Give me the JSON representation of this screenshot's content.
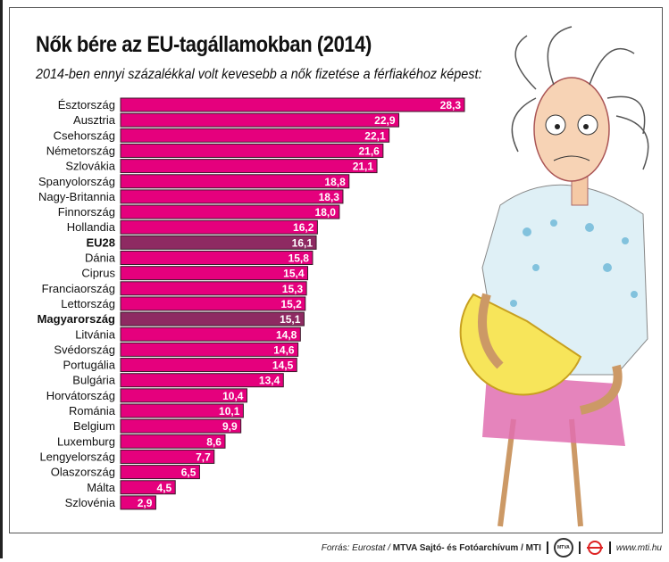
{
  "title": "Nők bére az EU-tagállamokban (2014)",
  "subtitle": "2014-ben ennyi százalékkal volt kevesebb a nők fizetése a férfiakéhoz képest:",
  "colors": {
    "bar": "#e5007d",
    "highlight": "#8e2a62",
    "label": "#ffffff"
  },
  "chart_data": {
    "type": "bar",
    "orientation": "horizontal",
    "categories": [
      "Észtország",
      "Ausztria",
      "Csehország",
      "Németország",
      "Szlovákia",
      "Spanyolország",
      "Nagy-Britannia",
      "Finnország",
      "Hollandia",
      "EU28",
      "Dánia",
      "Ciprus",
      "Franciaország",
      "Lettország",
      "Magyarország",
      "Litvánia",
      "Svédország",
      "Portugália",
      "Bulgária",
      "Horvátország",
      "Románia",
      "Belgium",
      "Luxemburg",
      "Lengyelország",
      "Olaszország",
      "Málta",
      "Szlovénia"
    ],
    "values": [
      28.3,
      22.9,
      22.1,
      21.6,
      21.1,
      18.8,
      18.3,
      18.0,
      16.2,
      16.1,
      15.8,
      15.4,
      15.3,
      15.2,
      15.1,
      14.8,
      14.6,
      14.5,
      13.4,
      10.4,
      10.1,
      9.9,
      8.6,
      7.7,
      6.5,
      4.5,
      2.9
    ],
    "labels": [
      "28,3",
      "22,9",
      "22,1",
      "21,6",
      "21,1",
      "18,8",
      "18,3",
      "18,0",
      "16,2",
      "16,1",
      "15,8",
      "15,4",
      "15,3",
      "15,2",
      "15,1",
      "14,8",
      "14,6",
      "14,5",
      "13,4",
      "10,4",
      "10,1",
      "9,9",
      "8,6",
      "7,7",
      "6,5",
      "4,5",
      "2,9"
    ],
    "highlighted": [
      "EU28",
      "Magyarország"
    ],
    "xlim": [
      0,
      28.3
    ],
    "grid": false
  },
  "footer": {
    "source": "Forrás: Eurostat / ",
    "agency": "MTVA Sajtó- és Fotóarchívum / MTI",
    "logo_text": "MTVA",
    "url": "www.mti.hu"
  }
}
